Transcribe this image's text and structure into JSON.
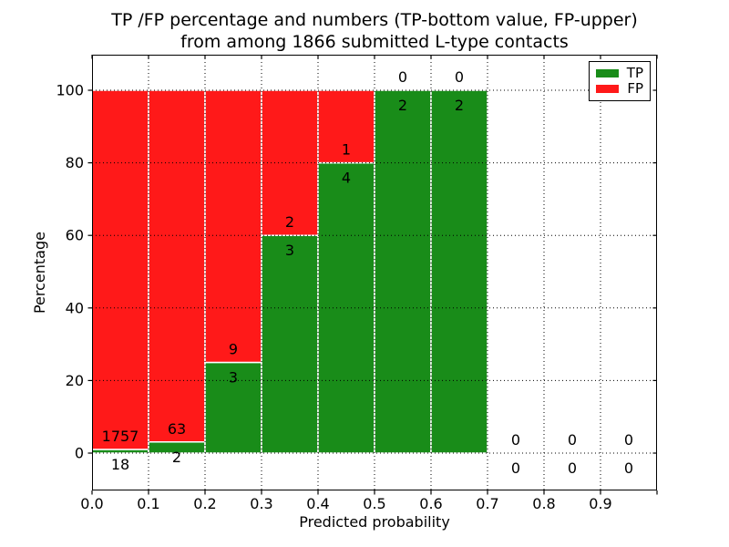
{
  "title": {
    "line1": "TP /FP percentage and numbers (TP-bottom value, FP-upper)",
    "line2": "from among 1866 submitted L-type contacts"
  },
  "chart_data": {
    "type": "bar",
    "stacked": true,
    "title": "TP /FP percentage and numbers (TP-bottom value, FP-upper) from among 1866 submitted L-type contacts",
    "xlabel": "Predicted probability",
    "ylabel": "Percentage",
    "x_ticks": [
      "0.0",
      "0.1",
      "0.2",
      "0.3",
      "0.4",
      "0.5",
      "0.6",
      "0.7",
      "0.8",
      "0.9"
    ],
    "y_ticks": [
      0,
      20,
      40,
      60,
      80,
      100
    ],
    "xlim": [
      0.0,
      1.0
    ],
    "ylim": [
      -10.3,
      109.8
    ],
    "grid": true,
    "grid_style": "dotted",
    "legend": {
      "position": "upper right",
      "entries": [
        {
          "label": "TP",
          "color": "#198c19"
        },
        {
          "label": "FP",
          "color": "#ff1919"
        }
      ]
    },
    "colors": {
      "tp": "#198c19",
      "fp": "#ff1919",
      "bar_edge": "#ffffff",
      "text": "#000000"
    },
    "note": "green segment height = TP/(TP+FP)*100, red stacked above to 100%; FP count printed above segment boundary, TP count below",
    "bins": [
      {
        "range": [
          0.0,
          0.1
        ],
        "tp": 18,
        "fp": 1757
      },
      {
        "range": [
          0.1,
          0.2
        ],
        "tp": 2,
        "fp": 63
      },
      {
        "range": [
          0.2,
          0.3
        ],
        "tp": 3,
        "fp": 9
      },
      {
        "range": [
          0.3,
          0.4
        ],
        "tp": 3,
        "fp": 2
      },
      {
        "range": [
          0.4,
          0.5
        ],
        "tp": 4,
        "fp": 1
      },
      {
        "range": [
          0.5,
          0.6
        ],
        "tp": 2,
        "fp": 0
      },
      {
        "range": [
          0.6,
          0.7
        ],
        "tp": 2,
        "fp": 0
      },
      {
        "range": [
          0.7,
          0.8
        ],
        "tp": 0,
        "fp": 0
      },
      {
        "range": [
          0.8,
          0.9
        ],
        "tp": 0,
        "fp": 0
      },
      {
        "range": [
          0.9,
          1.0
        ],
        "tp": 0,
        "fp": 0
      }
    ]
  }
}
